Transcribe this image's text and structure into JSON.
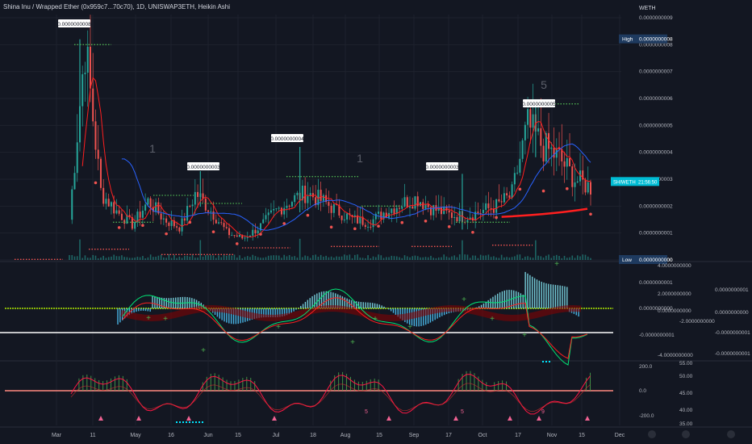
{
  "header": {
    "title": "Shina Inu / Wrapped Ether (0x959c7...70c70), 1D, UNISWAP3ETH, Heikin Ashi",
    "currency": "WETH"
  },
  "price_axis": {
    "labels": [
      "0.0000000009",
      "0.0000000008",
      "0.0000000007",
      "0.0000000006",
      "0.0000000005",
      "0.0000000004",
      "0.0000000003",
      "0.0000000002",
      "0.0000000001",
      "0.0000000000"
    ],
    "high_label": "High",
    "high_value": "0.0000000008",
    "low_label": "Low",
    "low_value": "0.0000000000",
    "symbol_tag": "SHIWETH",
    "countdown": "21:56:50"
  },
  "annotations": {
    "peak_labels": [
      "0.0000000008",
      "0.0000000003",
      "0.0000000004",
      "0.0000000003",
      "0.0000000005"
    ],
    "wave_labels": [
      "1",
      "1",
      "5"
    ]
  },
  "macd_axis": {
    "left_labels": [
      "0.0000000001",
      "0.0000000000",
      "-0.0000000001"
    ],
    "right_labels": [
      "4.0000000000",
      "2.0000000000",
      "0.0000000000",
      "-2.0000000000",
      "-4.0000000000"
    ],
    "col2_labels": [
      "0.0000000001",
      "0.0000000000",
      "-0.0000000001",
      "-0.0000000001"
    ]
  },
  "osc_axis": {
    "left_labels": [
      "200.0",
      "0.0",
      "-200.0"
    ],
    "right_labels": [
      "55.00",
      "50.00",
      "45.00",
      "40.00",
      "35.00"
    ],
    "markers": [
      "5",
      "5",
      "9"
    ]
  },
  "time_axis": {
    "labels": [
      "Mar",
      "11",
      "May",
      "16",
      "Jun",
      "15",
      "Jul",
      "18",
      "Aug",
      "15",
      "Sep",
      "17",
      "Oct",
      "17",
      "Nov",
      "15",
      "Dec"
    ]
  },
  "colors": {
    "background": "#131722",
    "up": "#26a69a",
    "down": "#ef5350",
    "ma_red": "#ff1f1f",
    "ma_blue": "#2962ff",
    "dotted_green": "#4caf50",
    "dotted_red": "#ef5350",
    "macd_signal": "#00e676",
    "cyan": "#00e5ff"
  },
  "chart_data": {
    "type": "candlestick",
    "series_style": "Heikin Ashi",
    "ylim": [
      0,
      9e-10
    ],
    "x_dates": [
      "Mar",
      "11",
      "May",
      "16",
      "Jun",
      "15",
      "Jul",
      "18",
      "Aug",
      "15",
      "Sep",
      "17",
      "Oct",
      "17",
      "Nov",
      "15",
      "Dec"
    ],
    "close_profile": [
      1.5e-10,
      8e-10,
      2.5e-10,
      1.8e-10,
      1.3e-10,
      2.2e-10,
      1.5e-10,
      1.2e-10,
      2.5e-10,
      1.8e-10,
      1e-10,
      8e-11,
      1.2e-10,
      1.8e-10,
      2.2e-10,
      2.5e-10,
      2.2e-10,
      1.8e-10,
      1.5e-10,
      1.4e-10,
      1.8e-10,
      2.1e-10,
      2.3e-10,
      1.9e-10,
      1.7e-10,
      1.6e-10,
      1.8e-10,
      2e-10,
      2.4e-10,
      5e-10,
      4.2e-10,
      3.8e-10,
      3e-10,
      2.7e-10
    ],
    "peaks": [
      {
        "label": "0.0000000008",
        "x": "Mar"
      },
      {
        "label": "0.0000000003",
        "x": "May"
      },
      {
        "label": "0.0000000004",
        "x": "Jul"
      },
      {
        "label": "0.0000000003",
        "x": "Sep"
      },
      {
        "label": "0.0000000005",
        "x": "Oct"
      }
    ]
  }
}
